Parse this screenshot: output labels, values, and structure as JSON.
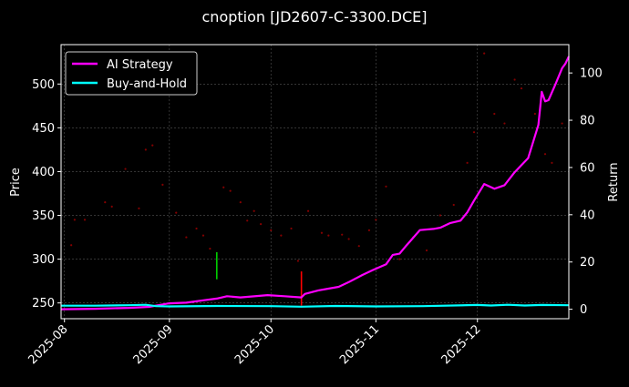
{
  "chart_data": {
    "type": "line",
    "title": "cnoption [JD2607-C-3300.DCE]",
    "xlabel": "",
    "ylabel": "Price",
    "y2label": "Return",
    "x_tick_labels": [
      "2025-08",
      "2025-09",
      "2025-10",
      "2025-11",
      "2025-12"
    ],
    "x_ticks": [
      "2025-08-01",
      "2025-09-01",
      "2025-10-01",
      "2025-11-01",
      "2025-12-01"
    ],
    "xlim": [
      "2025-07-31",
      "2025-12-28"
    ],
    "ylim": [
      232,
      545
    ],
    "y_ticks": [
      250,
      300,
      350,
      400,
      450,
      500
    ],
    "y2lim": [
      -4,
      112
    ],
    "y2_ticks": [
      0,
      20,
      40,
      60,
      80,
      100
    ],
    "grid": true,
    "legend_position": "top-left",
    "background": "#000000",
    "series": [
      {
        "name": "AI Strategy",
        "axis": "right",
        "color": "#ff00ff",
        "points": [
          [
            "2025-07-31",
            0.0
          ],
          [
            "2025-08-10",
            0.2
          ],
          [
            "2025-08-20",
            0.6
          ],
          [
            "2025-08-26",
            1.0
          ],
          [
            "2025-09-01",
            2.5
          ],
          [
            "2025-09-06",
            2.8
          ],
          [
            "2025-09-11",
            3.8
          ],
          [
            "2025-09-15",
            4.5
          ],
          [
            "2025-09-18",
            5.5
          ],
          [
            "2025-09-22",
            5.0
          ],
          [
            "2025-09-30",
            6.0
          ],
          [
            "2025-10-05",
            5.5
          ],
          [
            "2025-10-10",
            5.0
          ],
          [
            "2025-10-11",
            6.5
          ],
          [
            "2025-10-15",
            8.0
          ],
          [
            "2025-10-21",
            9.5
          ],
          [
            "2025-10-24",
            11.5
          ],
          [
            "2025-10-28",
            14.5
          ],
          [
            "2025-10-31",
            16.5
          ],
          [
            "2025-11-04",
            19.0
          ],
          [
            "2025-11-06",
            23.0
          ],
          [
            "2025-11-08",
            23.5
          ],
          [
            "2025-11-10",
            27.0
          ],
          [
            "2025-11-14",
            33.5
          ],
          [
            "2025-11-18",
            34.0
          ],
          [
            "2025-11-20",
            34.5
          ],
          [
            "2025-11-23",
            36.5
          ],
          [
            "2025-11-26",
            37.5
          ],
          [
            "2025-11-28",
            41.0
          ],
          [
            "2025-11-30",
            46.0
          ],
          [
            "2025-12-03",
            53.0
          ],
          [
            "2025-12-06",
            51.0
          ],
          [
            "2025-12-09",
            52.5
          ],
          [
            "2025-12-12",
            58.0
          ],
          [
            "2025-12-16",
            64.0
          ],
          [
            "2025-12-19",
            78.0
          ],
          [
            "2025-12-20",
            92.0
          ],
          [
            "2025-12-21",
            88.0
          ],
          [
            "2025-12-22",
            88.5
          ],
          [
            "2025-12-24",
            95.0
          ],
          [
            "2025-12-26",
            102.0
          ],
          [
            "2025-12-27",
            104.0
          ],
          [
            "2025-12-28",
            107.0
          ]
        ]
      },
      {
        "name": "Buy-and-Hold",
        "axis": "right",
        "color": "#00ffff",
        "points": [
          [
            "2025-07-31",
            1.5
          ],
          [
            "2025-08-10",
            1.5
          ],
          [
            "2025-08-20",
            1.7
          ],
          [
            "2025-08-25",
            1.9
          ],
          [
            "2025-08-28",
            1.3
          ],
          [
            "2025-09-01",
            1.2
          ],
          [
            "2025-09-15",
            1.4
          ],
          [
            "2025-10-01",
            1.3
          ],
          [
            "2025-10-10",
            1.1
          ],
          [
            "2025-10-20",
            1.4
          ],
          [
            "2025-11-01",
            1.2
          ],
          [
            "2025-11-15",
            1.3
          ],
          [
            "2025-12-01",
            1.8
          ],
          [
            "2025-12-05",
            1.6
          ],
          [
            "2025-12-10",
            1.9
          ],
          [
            "2025-12-15",
            1.6
          ],
          [
            "2025-12-20",
            1.8
          ],
          [
            "2025-12-28",
            1.7
          ]
        ]
      }
    ],
    "price_points": [
      [
        "2025-08-03",
        316
      ],
      [
        "2025-08-04",
        345
      ],
      [
        "2025-08-07",
        345
      ],
      [
        "2025-08-13",
        365
      ],
      [
        "2025-08-15",
        360
      ],
      [
        "2025-08-19",
        403
      ],
      [
        "2025-08-23",
        358
      ],
      [
        "2025-08-25",
        425
      ],
      [
        "2025-08-27",
        430
      ],
      [
        "2025-08-30",
        385
      ],
      [
        "2025-09-03",
        353
      ],
      [
        "2025-09-06",
        325
      ],
      [
        "2025-09-09",
        335
      ],
      [
        "2025-09-11",
        327
      ],
      [
        "2025-09-13",
        312
      ],
      [
        "2025-09-17",
        382
      ],
      [
        "2025-09-19",
        378
      ],
      [
        "2025-09-22",
        365
      ],
      [
        "2025-09-24",
        344
      ],
      [
        "2025-09-26",
        355
      ],
      [
        "2025-09-28",
        340
      ],
      [
        "2025-10-01",
        333
      ],
      [
        "2025-10-04",
        327
      ],
      [
        "2025-10-07",
        335
      ],
      [
        "2025-10-09",
        298
      ],
      [
        "2025-10-12",
        355
      ],
      [
        "2025-10-16",
        330
      ],
      [
        "2025-10-18",
        327
      ],
      [
        "2025-10-22",
        328
      ],
      [
        "2025-10-24",
        323
      ],
      [
        "2025-10-27",
        315
      ],
      [
        "2025-10-30",
        333
      ],
      [
        "2025-11-01",
        345
      ],
      [
        "2025-11-04",
        383
      ],
      [
        "2025-11-08",
        300
      ],
      [
        "2025-11-12",
        325
      ],
      [
        "2025-11-16",
        310
      ],
      [
        "2025-11-20",
        350
      ],
      [
        "2025-11-24",
        362
      ],
      [
        "2025-11-28",
        410
      ],
      [
        "2025-11-30",
        445
      ],
      [
        "2025-12-03",
        535
      ],
      [
        "2025-12-06",
        466
      ],
      [
        "2025-12-09",
        455
      ],
      [
        "2025-12-12",
        505
      ],
      [
        "2025-12-14",
        495
      ],
      [
        "2025-12-18",
        466
      ],
      [
        "2025-12-21",
        420
      ],
      [
        "2025-12-23",
        410
      ],
      [
        "2025-12-26",
        455
      ]
    ],
    "signals": [
      {
        "type": "buy",
        "date": "2025-09-15",
        "low": 277,
        "high": 308,
        "color": "#00cc00"
      },
      {
        "type": "sell",
        "date": "2025-10-10",
        "low": 247,
        "high": 286,
        "color": "#ff0000"
      }
    ]
  }
}
